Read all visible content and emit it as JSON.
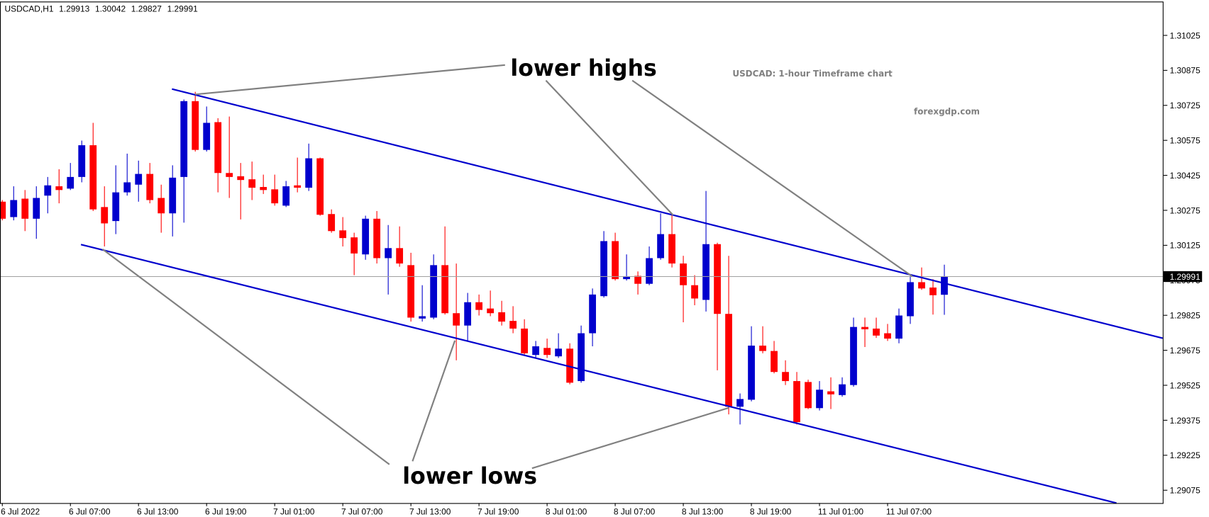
{
  "chart_data": {
    "type": "candlestick",
    "symbol": "USDCAD,H1",
    "title": "USDCAD: 1-hour Timeframe chart",
    "subtitle": "forexgdp.com",
    "annotations": [
      "lower highs",
      "lower lows"
    ],
    "up_color": "#0000cd",
    "down_color": "#ff0000",
    "ylim": [
      1.2902,
      1.3117
    ],
    "yticks": [
      1.31025,
      1.30875,
      1.30725,
      1.30575,
      1.30425,
      1.30275,
      1.30125,
      1.29975,
      1.29825,
      1.29675,
      1.29525,
      1.29375,
      1.29225,
      1.29075
    ],
    "categories": [
      "6 Jul 2022",
      null,
      null,
      null,
      null,
      null,
      "6 Jul 07:00",
      null,
      null,
      null,
      null,
      null,
      "6 Jul 13:00",
      null,
      null,
      null,
      null,
      null,
      "6 Jul 19:00",
      null,
      null,
      null,
      null,
      null,
      "7 Jul 01:00",
      null,
      null,
      null,
      null,
      null,
      "7 Jul 07:00",
      null,
      null,
      null,
      null,
      null,
      "7 Jul 13:00",
      null,
      null,
      null,
      null,
      null,
      "7 Jul 19:00",
      null,
      null,
      null,
      null,
      null,
      "8 Jul 01:00",
      null,
      null,
      null,
      null,
      null,
      "8 Jul 07:00",
      null,
      null,
      null,
      null,
      null,
      "8 Jul 13:00",
      null,
      null,
      null,
      null,
      null,
      "8 Jul 19:00",
      null,
      null,
      null,
      null,
      null,
      "11 Jul 01:00",
      null,
      null,
      null,
      null,
      null,
      "11 Jul 07:00",
      null,
      null,
      null,
      null,
      null
    ],
    "open": [
      1.30312,
      1.30246,
      1.30325,
      1.30239,
      1.30338,
      1.30378,
      1.30368,
      1.30418,
      1.30554,
      1.30289,
      1.30229,
      1.30352,
      1.30385,
      1.30431,
      1.30328,
      1.30262,
      1.30418,
      1.30743,
      1.30534,
      1.30653,
      1.30435,
      1.30421,
      1.30408,
      1.30375,
      1.30365,
      1.30295,
      1.30382,
      1.30372,
      1.30498,
      1.30259,
      1.30189,
      1.30159,
      1.30086,
      1.30239,
      1.3007,
      1.30113,
      1.3004,
      1.29811,
      1.29815,
      1.3004,
      1.29834,
      1.29781,
      1.29881,
      1.29854,
      1.29838,
      1.29801,
      1.29768,
      1.29655,
      1.29685,
      1.29649,
      1.29682,
      1.29543,
      1.29748,
      1.29907,
      1.30143,
      1.2998,
      1.29994,
      1.2996,
      1.3007,
      1.30173,
      1.30047,
      1.29954,
      1.29891,
      1.3013,
      1.29831,
      1.29433,
      1.29463,
      1.29695,
      1.29672,
      1.29582,
      1.29543,
      1.29539,
      1.29427,
      1.29499,
      1.29483,
      1.29526,
      1.29775,
      1.29768,
      1.29748,
      1.29725,
      1.29821,
      1.29967,
      1.29944,
      1.29913
    ],
    "high": [
      1.30319,
      1.30378,
      1.30362,
      1.30378,
      1.30418,
      1.30451,
      1.30478,
      1.30574,
      1.3065,
      1.30378,
      1.30468,
      1.30518,
      1.30488,
      1.30478,
      1.30385,
      1.30468,
      1.3075,
      1.30783,
      1.3072,
      1.3067,
      1.30677,
      1.30478,
      1.30484,
      1.30428,
      1.30428,
      1.30401,
      1.30501,
      1.30561,
      1.30501,
      1.30279,
      1.30246,
      1.30179,
      1.30252,
      1.30272,
      1.30212,
      1.30206,
      1.30093,
      1.29954,
      1.30086,
      1.30206,
      1.30047,
      1.29921,
      1.29914,
      1.29931,
      1.29887,
      1.29864,
      1.29808,
      1.29715,
      1.29725,
      1.29748,
      1.29705,
      1.29781,
      1.2994,
      1.30186,
      1.30179,
      1.30086,
      1.30013,
      1.3012,
      1.30262,
      1.30256,
      1.3008,
      1.29997,
      1.30358,
      1.30136,
      1.3008,
      1.2949,
      1.29778,
      1.29778,
      1.29715,
      1.29632,
      1.29582,
      1.29549,
      1.29543,
      1.29559,
      1.29559,
      1.29815,
      1.29815,
      1.29815,
      1.29788,
      1.29854,
      1.29994,
      1.3003,
      1.2998,
      1.30042
    ],
    "low": [
      1.30232,
      1.30232,
      1.30186,
      1.30153,
      1.30262,
      1.30305,
      1.30362,
      1.30395,
      1.30272,
      1.3012,
      1.30173,
      1.30338,
      1.30312,
      1.30305,
      1.30179,
      1.30163,
      1.30222,
      1.30527,
      1.30527,
      1.30352,
      1.30328,
      1.30236,
      1.30319,
      1.30345,
      1.30295,
      1.30289,
      1.30352,
      1.30358,
      1.30252,
      1.30179,
      1.3012,
      1.29997,
      1.30063,
      1.30047,
      1.29914,
      1.30033,
      1.29798,
      1.29798,
      1.29808,
      1.29828,
      1.29632,
      1.29715,
      1.29824,
      1.29821,
      1.29781,
      1.29748,
      1.29655,
      1.29642,
      1.29642,
      1.29642,
      1.29529,
      1.29536,
      1.29692,
      1.29901,
      1.29974,
      1.29974,
      1.29914,
      1.29954,
      1.30063,
      1.3003,
      1.29795,
      1.29868,
      1.29841,
      1.29589,
      1.294,
      1.29357,
      1.29456,
      1.29662,
      1.29576,
      1.29526,
      1.29357,
      1.29423,
      1.29417,
      1.29423,
      1.29476,
      1.29519,
      1.29689,
      1.29728,
      1.29715,
      1.29705,
      1.29788,
      1.29934,
      1.29828,
      1.29827
    ],
    "close": [
      1.30239,
      1.30319,
      1.30239,
      1.30328,
      1.30382,
      1.30362,
      1.30418,
      1.30554,
      1.30279,
      1.30219,
      1.30352,
      1.30395,
      1.30431,
      1.30319,
      1.30262,
      1.30415,
      1.30743,
      1.30534,
      1.3065,
      1.30435,
      1.30418,
      1.30405,
      1.30372,
      1.30362,
      1.30305,
      1.30378,
      1.30372,
      1.30498,
      1.30256,
      1.30186,
      1.30156,
      1.3009,
      1.30239,
      1.3007,
      1.30113,
      1.30047,
      1.29815,
      1.29821,
      1.3004,
      1.29834,
      1.29781,
      1.29881,
      1.29848,
      1.29834,
      1.29798,
      1.29768,
      1.29662,
      1.29692,
      1.29655,
      1.29682,
      1.29536,
      1.29748,
      1.29914,
      1.30143,
      1.2998,
      1.2999,
      1.2996,
      1.3007,
      1.30173,
      1.30047,
      1.29954,
      1.29897,
      1.3013,
      1.29831,
      1.29433,
      1.29466,
      1.29695,
      1.29672,
      1.29582,
      1.29543,
      1.29367,
      1.29427,
      1.29506,
      1.29486,
      1.29529,
      1.29775,
      1.29765,
      1.29738,
      1.29725,
      1.29824,
      1.29967,
      1.2994,
      1.29911,
      1.29991
    ]
  }
}
